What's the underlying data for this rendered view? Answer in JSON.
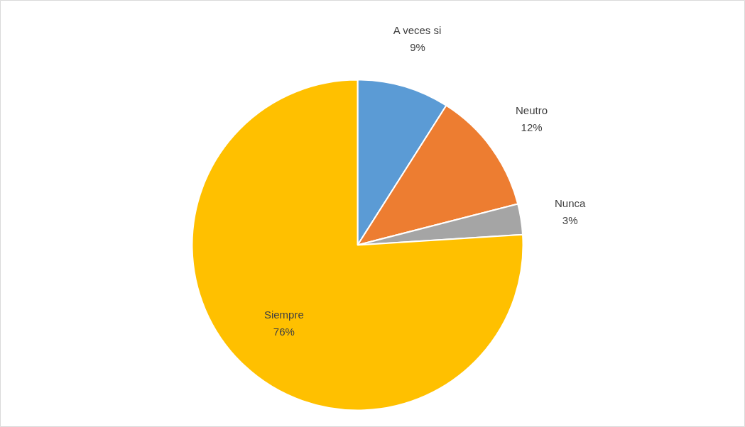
{
  "chart_data": {
    "type": "pie",
    "categories": [
      "A veces si",
      "Neutro",
      "Nunca",
      "Siempre"
    ],
    "values": [
      9,
      12,
      3,
      76
    ],
    "colors": [
      "#5b9bd5",
      "#ed7d31",
      "#a5a5a5",
      "#ffc000"
    ],
    "value_labels": [
      "9%",
      "12%",
      "3%",
      "76%"
    ],
    "legend": false
  }
}
